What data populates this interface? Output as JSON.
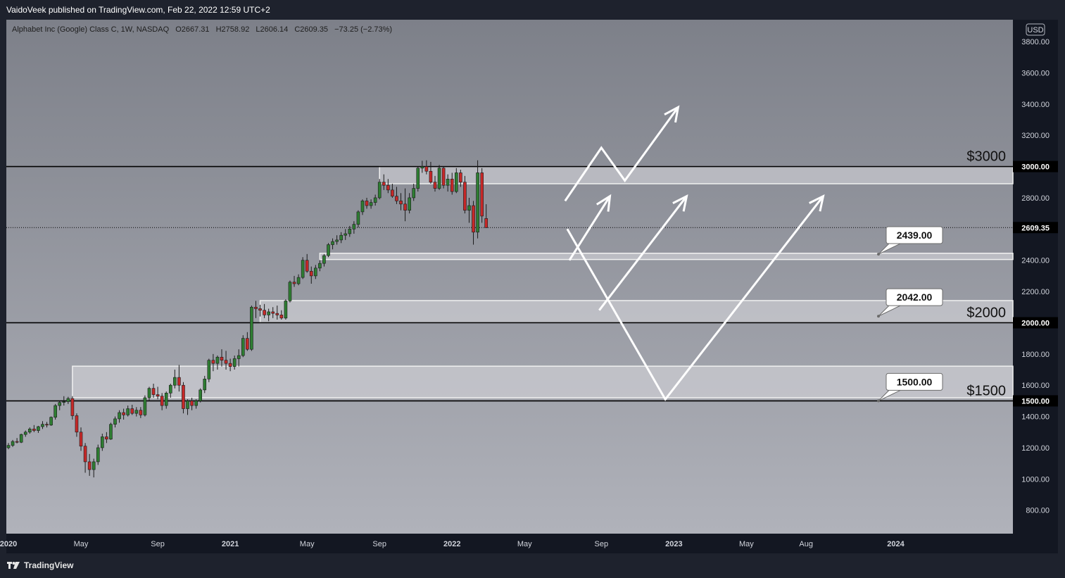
{
  "publish_text": "VaidoVeek published on TradingView.com, Feb 22, 2022 12:59 UTC+2",
  "brand": "TradingView",
  "colors": {
    "bull": "#2e7d32",
    "bear": "#c62828",
    "zone_fill": "#d6d6da",
    "zone_stroke": "#f0f0f0",
    "level_line": "#000000",
    "projection": "#ffffff"
  },
  "chart_data": {
    "type": "candlestick",
    "symbol_line": {
      "name": "Alphabet Inc (Google) Class C, 1W, NASDAQ",
      "open": "O2667.31",
      "high": "H2758.92",
      "low": "L2606.14",
      "close": "C2609.35",
      "change": "−73.25 (−2.73%)"
    },
    "currency": "USD",
    "y_axis": {
      "range": [
        650,
        3940
      ],
      "ticks": [
        "800.00",
        "1000.00",
        "1200.00",
        "1400.00",
        "1600.00",
        "1800.00",
        "2200.00",
        "2400.00",
        "2800.00",
        "3200.00",
        "3400.00",
        "3600.00",
        "3800.00"
      ]
    },
    "x_axis_labels": [
      {
        "label": "2020",
        "week": 0
      },
      {
        "label": "May",
        "week": 17
      },
      {
        "label": "Sep",
        "week": 35
      },
      {
        "label": "2021",
        "week": 52
      },
      {
        "label": "May",
        "week": 70
      },
      {
        "label": "Sep",
        "week": 87
      },
      {
        "label": "2022",
        "week": 104
      },
      {
        "label": "May",
        "week": 121
      },
      {
        "label": "Sep",
        "week": 139
      },
      {
        "label": "2023",
        "week": 156
      },
      {
        "label": "May",
        "week": 173
      },
      {
        "label": "Aug",
        "week": 187
      },
      {
        "label": "2024",
        "week": 208
      }
    ],
    "first_week": "2019-11-04",
    "last_price": "2609.35",
    "candles": [
      [
        1200,
        1230,
        1190,
        1215
      ],
      [
        1215,
        1250,
        1205,
        1240
      ],
      [
        1240,
        1262,
        1228,
        1235
      ],
      [
        1235,
        1290,
        1230,
        1285
      ],
      [
        1285,
        1310,
        1270,
        1300
      ],
      [
        1300,
        1330,
        1290,
        1320
      ],
      [
        1320,
        1345,
        1300,
        1310
      ],
      [
        1310,
        1340,
        1295,
        1335
      ],
      [
        1335,
        1370,
        1320,
        1350
      ],
      [
        1350,
        1365,
        1330,
        1345
      ],
      [
        1345,
        1400,
        1340,
        1395
      ],
      [
        1395,
        1480,
        1380,
        1470
      ],
      [
        1470,
        1500,
        1440,
        1490
      ],
      [
        1490,
        1530,
        1470,
        1495
      ],
      [
        1495,
        1526,
        1480,
        1515
      ],
      [
        1515,
        1530,
        1380,
        1405
      ],
      [
        1405,
        1420,
        1270,
        1300
      ],
      [
        1300,
        1330,
        1180,
        1210
      ],
      [
        1210,
        1230,
        1040,
        1110
      ],
      [
        1110,
        1160,
        1020,
        1060
      ],
      [
        1060,
        1130,
        1010,
        1110
      ],
      [
        1110,
        1220,
        1090,
        1200
      ],
      [
        1200,
        1290,
        1180,
        1270
      ],
      [
        1270,
        1300,
        1230,
        1255
      ],
      [
        1255,
        1360,
        1250,
        1350
      ],
      [
        1350,
        1400,
        1330,
        1385
      ],
      [
        1385,
        1440,
        1360,
        1425
      ],
      [
        1425,
        1450,
        1380,
        1410
      ],
      [
        1410,
        1470,
        1400,
        1450
      ],
      [
        1450,
        1475,
        1410,
        1420
      ],
      [
        1420,
        1460,
        1400,
        1440
      ],
      [
        1440,
        1460,
        1390,
        1410
      ],
      [
        1410,
        1535,
        1400,
        1520
      ],
      [
        1520,
        1590,
        1500,
        1580
      ],
      [
        1580,
        1610,
        1520,
        1540
      ],
      [
        1540,
        1590,
        1510,
        1530
      ],
      [
        1530,
        1550,
        1440,
        1470
      ],
      [
        1470,
        1560,
        1450,
        1550
      ],
      [
        1550,
        1610,
        1520,
        1600
      ],
      [
        1600,
        1700,
        1580,
        1650
      ],
      [
        1650,
        1730,
        1560,
        1600
      ],
      [
        1600,
        1620,
        1420,
        1450
      ],
      [
        1450,
        1510,
        1410,
        1500
      ],
      [
        1500,
        1520,
        1440,
        1470
      ],
      [
        1470,
        1510,
        1450,
        1500
      ],
      [
        1500,
        1580,
        1490,
        1570
      ],
      [
        1570,
        1660,
        1550,
        1640
      ],
      [
        1640,
        1770,
        1620,
        1760
      ],
      [
        1760,
        1800,
        1690,
        1740
      ],
      [
        1740,
        1790,
        1700,
        1780
      ],
      [
        1780,
        1830,
        1720,
        1760
      ],
      [
        1760,
        1820,
        1700,
        1740
      ],
      [
        1740,
        1770,
        1690,
        1720
      ],
      [
        1720,
        1790,
        1700,
        1770
      ],
      [
        1770,
        1830,
        1720,
        1790
      ],
      [
        1790,
        1920,
        1780,
        1900
      ],
      [
        1900,
        1940,
        1820,
        1830
      ],
      [
        1830,
        2110,
        1820,
        2100
      ],
      [
        2100,
        2140,
        2030,
        2090
      ],
      [
        2090,
        2115,
        2040,
        2080
      ],
      [
        2080,
        2120,
        2030,
        2050
      ],
      [
        2050,
        2090,
        2010,
        2070
      ],
      [
        2070,
        2100,
        2030,
        2060
      ],
      [
        2060,
        2110,
        2020,
        2050
      ],
      [
        2050,
        2080,
        2020,
        2030
      ],
      [
        2030,
        2150,
        2020,
        2140
      ],
      [
        2140,
        2270,
        2130,
        2260
      ],
      [
        2260,
        2300,
        2230,
        2250
      ],
      [
        2250,
        2310,
        2240,
        2290
      ],
      [
        2290,
        2420,
        2280,
        2400
      ],
      [
        2400,
        2440,
        2320,
        2330
      ],
      [
        2330,
        2360,
        2250,
        2300
      ],
      [
        2300,
        2370,
        2280,
        2350
      ],
      [
        2350,
        2400,
        2330,
        2380
      ],
      [
        2380,
        2440,
        2360,
        2430
      ],
      [
        2430,
        2510,
        2420,
        2500
      ],
      [
        2500,
        2540,
        2470,
        2520
      ],
      [
        2520,
        2560,
        2500,
        2530
      ],
      [
        2530,
        2580,
        2510,
        2560
      ],
      [
        2560,
        2600,
        2530,
        2570
      ],
      [
        2570,
        2620,
        2550,
        2600
      ],
      [
        2600,
        2650,
        2570,
        2630
      ],
      [
        2630,
        2720,
        2610,
        2710
      ],
      [
        2710,
        2790,
        2690,
        2780
      ],
      [
        2780,
        2800,
        2730,
        2750
      ],
      [
        2750,
        2790,
        2730,
        2770
      ],
      [
        2770,
        2820,
        2750,
        2800
      ],
      [
        2800,
        2920,
        2790,
        2900
      ],
      [
        2900,
        2950,
        2850,
        2880
      ],
      [
        2880,
        2920,
        2830,
        2850
      ],
      [
        2850,
        2890,
        2800,
        2810
      ],
      [
        2810,
        2870,
        2760,
        2780
      ],
      [
        2780,
        2830,
        2720,
        2760
      ],
      [
        2760,
        2860,
        2650,
        2720
      ],
      [
        2720,
        2830,
        2700,
        2800
      ],
      [
        2800,
        2890,
        2780,
        2860
      ],
      [
        2860,
        3000,
        2840,
        2990
      ],
      [
        2990,
        3037,
        2960,
        3000
      ],
      [
        3000,
        3040,
        2950,
        2970
      ],
      [
        2970,
        3030,
        2890,
        2900
      ],
      [
        2900,
        2940,
        2840,
        2860
      ],
      [
        2860,
        3010,
        2850,
        2990
      ],
      [
        2990,
        3000,
        2860,
        2880
      ],
      [
        2880,
        2950,
        2840,
        2920
      ],
      [
        2920,
        2960,
        2820,
        2840
      ],
      [
        2840,
        2990,
        2830,
        2960
      ],
      [
        2960,
        2980,
        2870,
        2900
      ],
      [
        2900,
        2940,
        2700,
        2720
      ],
      [
        2720,
        2800,
        2640,
        2750
      ],
      [
        2750,
        2780,
        2500,
        2580
      ],
      [
        2580,
        3040,
        2540,
        2960
      ],
      [
        2960,
        2990,
        2640,
        2683
      ],
      [
        2667.31,
        2758.92,
        2606.14,
        2609.35
      ]
    ],
    "zones": [
      {
        "from": 2890,
        "to": 3000,
        "week_start": 87
      },
      {
        "from": 2405,
        "to": 2445,
        "week_start": 73
      },
      {
        "from": 2000,
        "to": 2142,
        "week_start": 59
      },
      {
        "from": 1520,
        "to": 1722,
        "week_start": 15
      }
    ],
    "levels": [
      {
        "price": 3000,
        "label": "$3000",
        "axis_label": "3000.00"
      },
      {
        "price": 2000,
        "label": "$2000",
        "axis_label": "2000.00"
      },
      {
        "price": 1500,
        "label": "$1500",
        "axis_label": "1500.00"
      }
    ],
    "callouts": [
      {
        "price": 2439,
        "label": "2439.00"
      },
      {
        "price": 2042,
        "label": "2042.00"
      },
      {
        "price": 1500,
        "label": "1500.00"
      }
    ]
  }
}
